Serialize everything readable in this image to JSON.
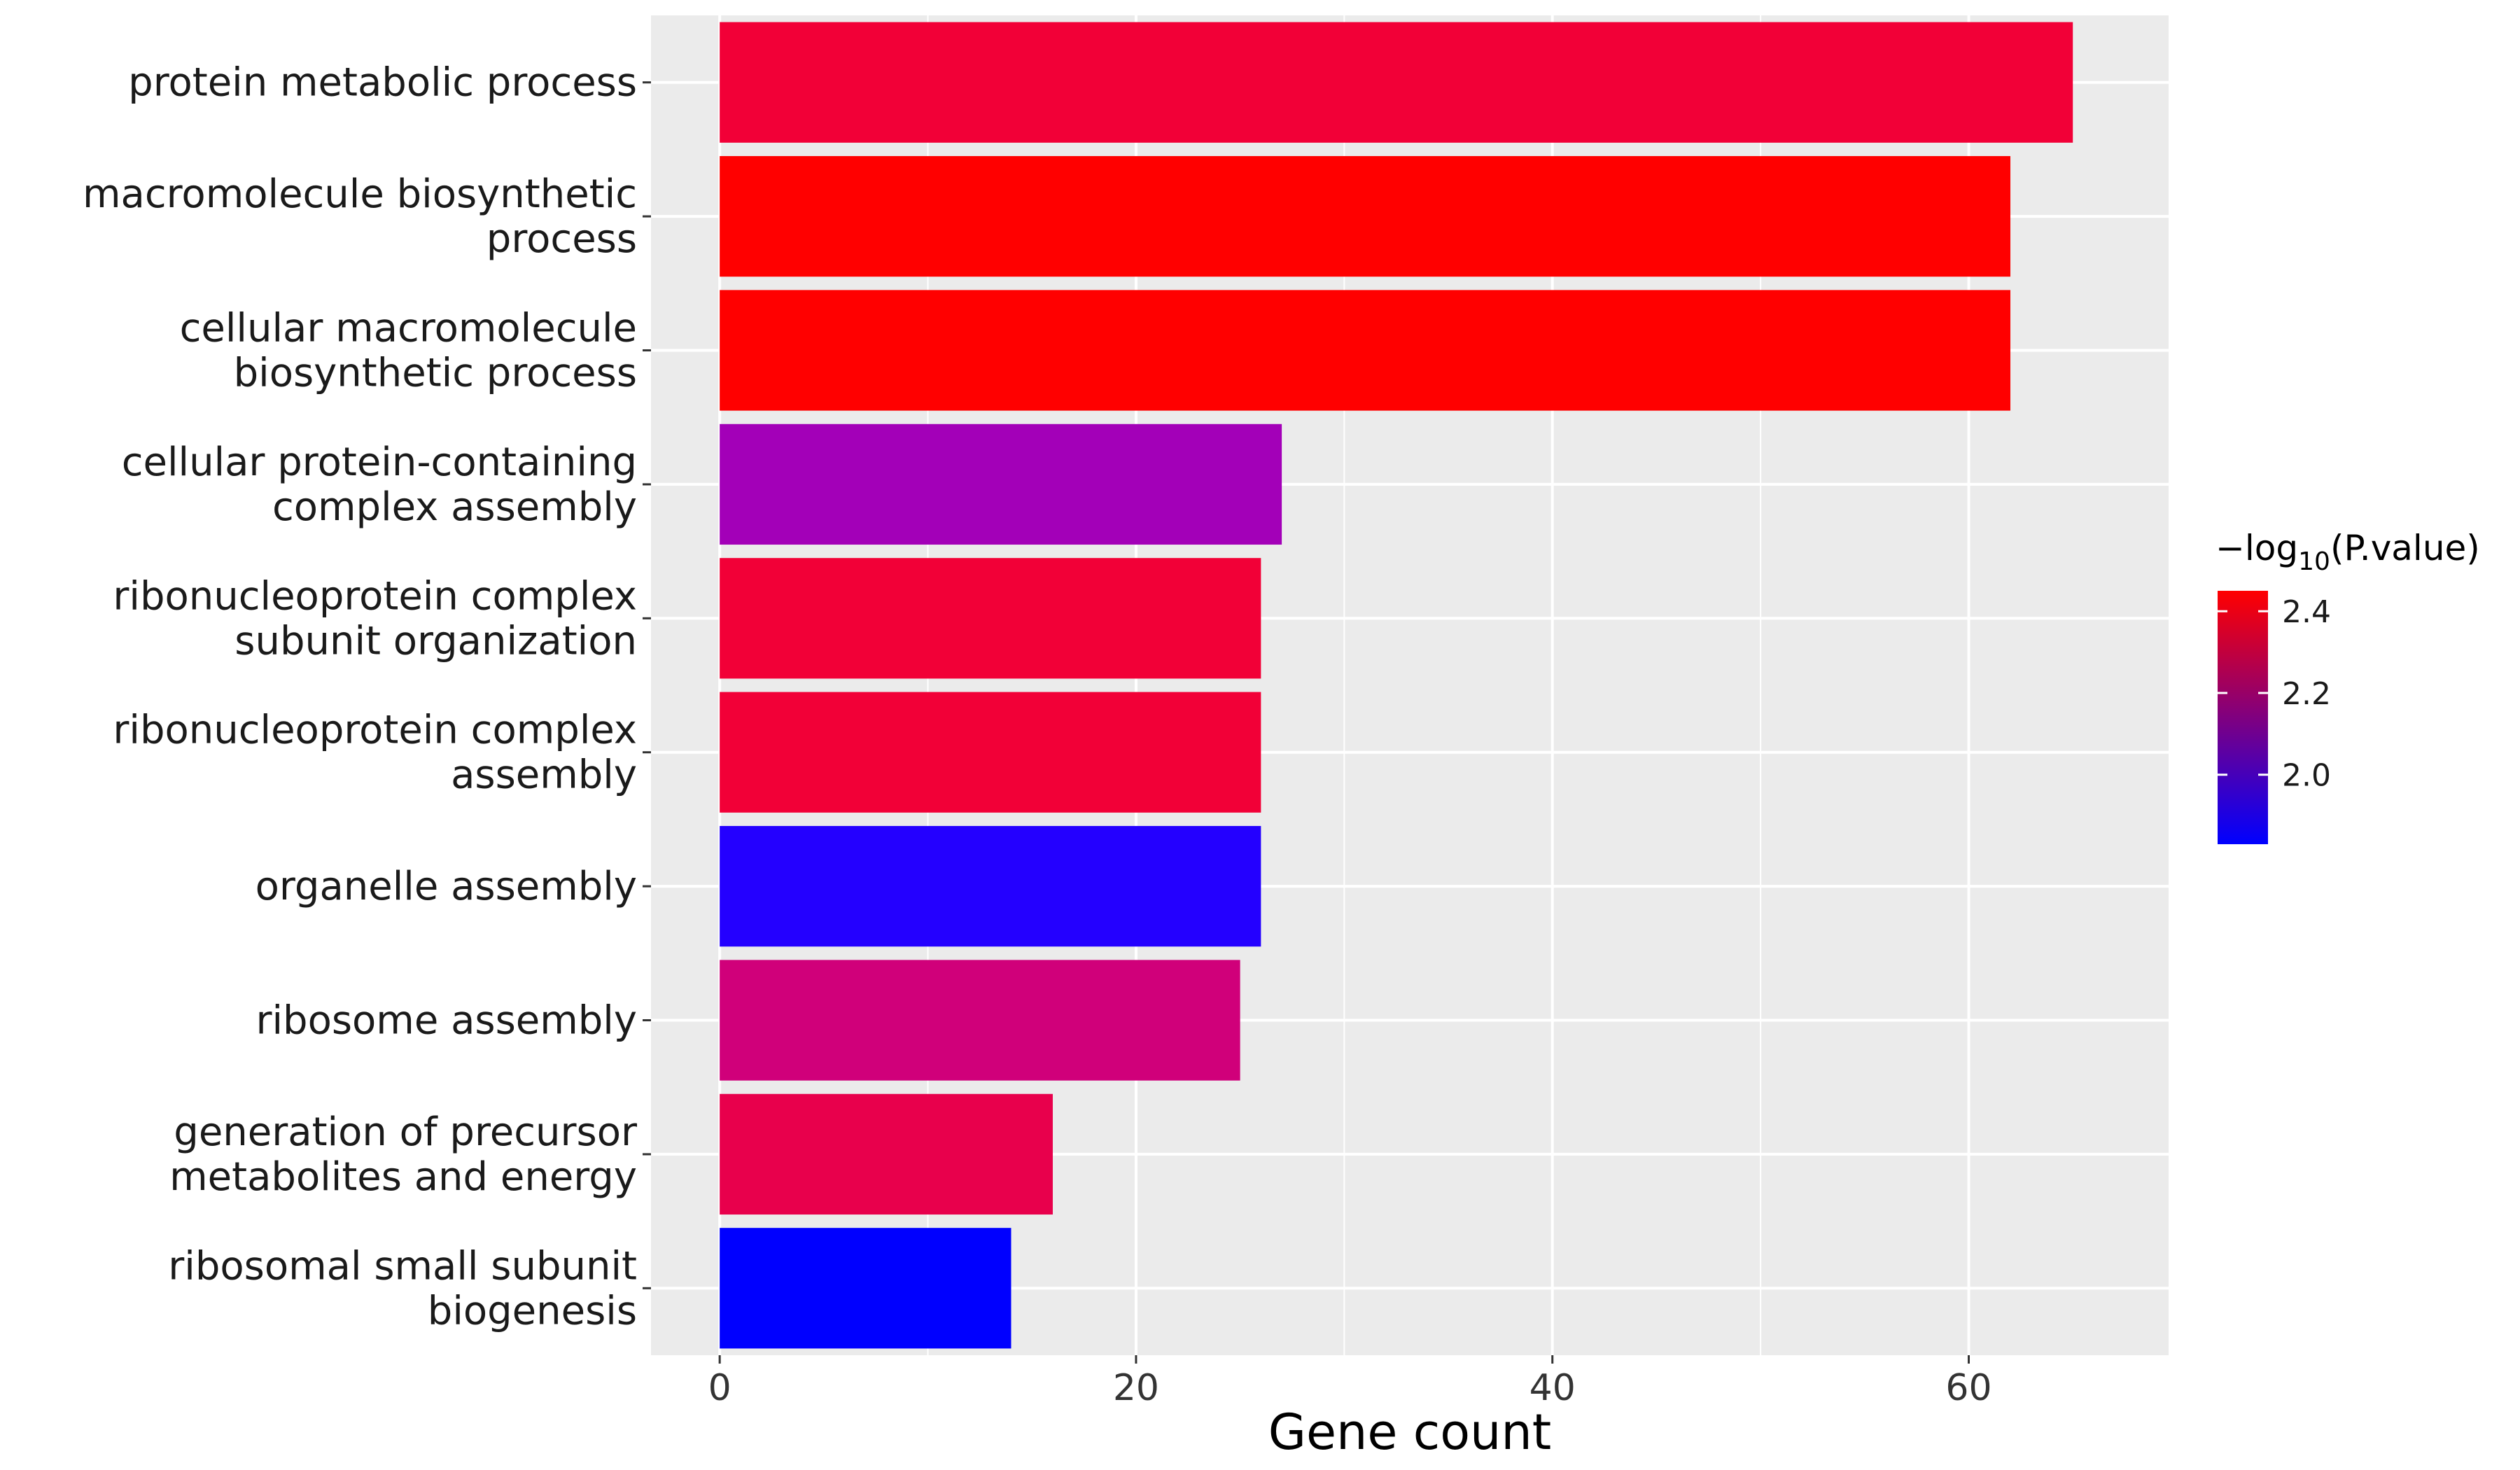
{
  "chart_data": {
    "type": "bar",
    "orientation": "horizontal",
    "categories": [
      "protein metabolic process",
      "macromolecule biosynthetic process",
      "cellular macromolecule biosynthetic process",
      "cellular protein-containing complex assembly",
      "ribonucleoprotein complex subunit organization",
      "ribonucleoprotein complex assembly",
      "organelle assembly",
      "ribosome assembly",
      "generation of precursor metabolites and energy",
      "ribosomal small subunit biogenesis"
    ],
    "category_label_lines": [
      [
        "protein metabolic process"
      ],
      [
        "macromolecule biosynthetic",
        "process"
      ],
      [
        "cellular macromolecule",
        "biosynthetic process"
      ],
      [
        "cellular protein-containing",
        "complex assembly"
      ],
      [
        "ribonucleoprotein complex",
        "subunit organization"
      ],
      [
        "ribonucleoprotein complex",
        "assembly"
      ],
      [
        "organelle assembly"
      ],
      [
        "ribosome assembly"
      ],
      [
        "generation of precursor",
        "metabolites and energy"
      ],
      [
        "ribosomal small subunit",
        "biogenesis"
      ]
    ],
    "values": [
      65,
      62,
      62,
      27,
      26,
      26,
      26,
      25,
      16,
      14
    ],
    "color_values": [
      2.32,
      2.45,
      2.45,
      1.98,
      2.32,
      2.32,
      1.86,
      2.18,
      2.28,
      1.83
    ],
    "bar_colors": [
      "#f20037",
      "#ff0000",
      "#ff0000",
      "#a300b8",
      "#f20037",
      "#f20037",
      "#2400ff",
      "#d0007a",
      "#e8004c",
      "#0000ff"
    ],
    "xlabel": "Gene count",
    "ylabel": "",
    "xlim": [
      -3.3,
      69.6
    ],
    "xticks": [
      0,
      20,
      40,
      60
    ],
    "xtick_labels": [
      "0",
      "20",
      "40",
      "60"
    ],
    "grid": true,
    "legend": {
      "title_prefix": "−log",
      "title_subscript": "10",
      "title_suffix": "(P.value)",
      "placement": "right",
      "color_low": "#0000ff",
      "color_high": "#ff0000",
      "range": [
        1.83,
        2.45
      ],
      "ticks": [
        2.0,
        2.2,
        2.4
      ],
      "tick_labels": [
        "2.0",
        "2.2",
        "2.4"
      ]
    },
    "colors": {
      "panel": "#ebebeb",
      "gridline": "#ffffff",
      "tick": "#333333"
    }
  }
}
